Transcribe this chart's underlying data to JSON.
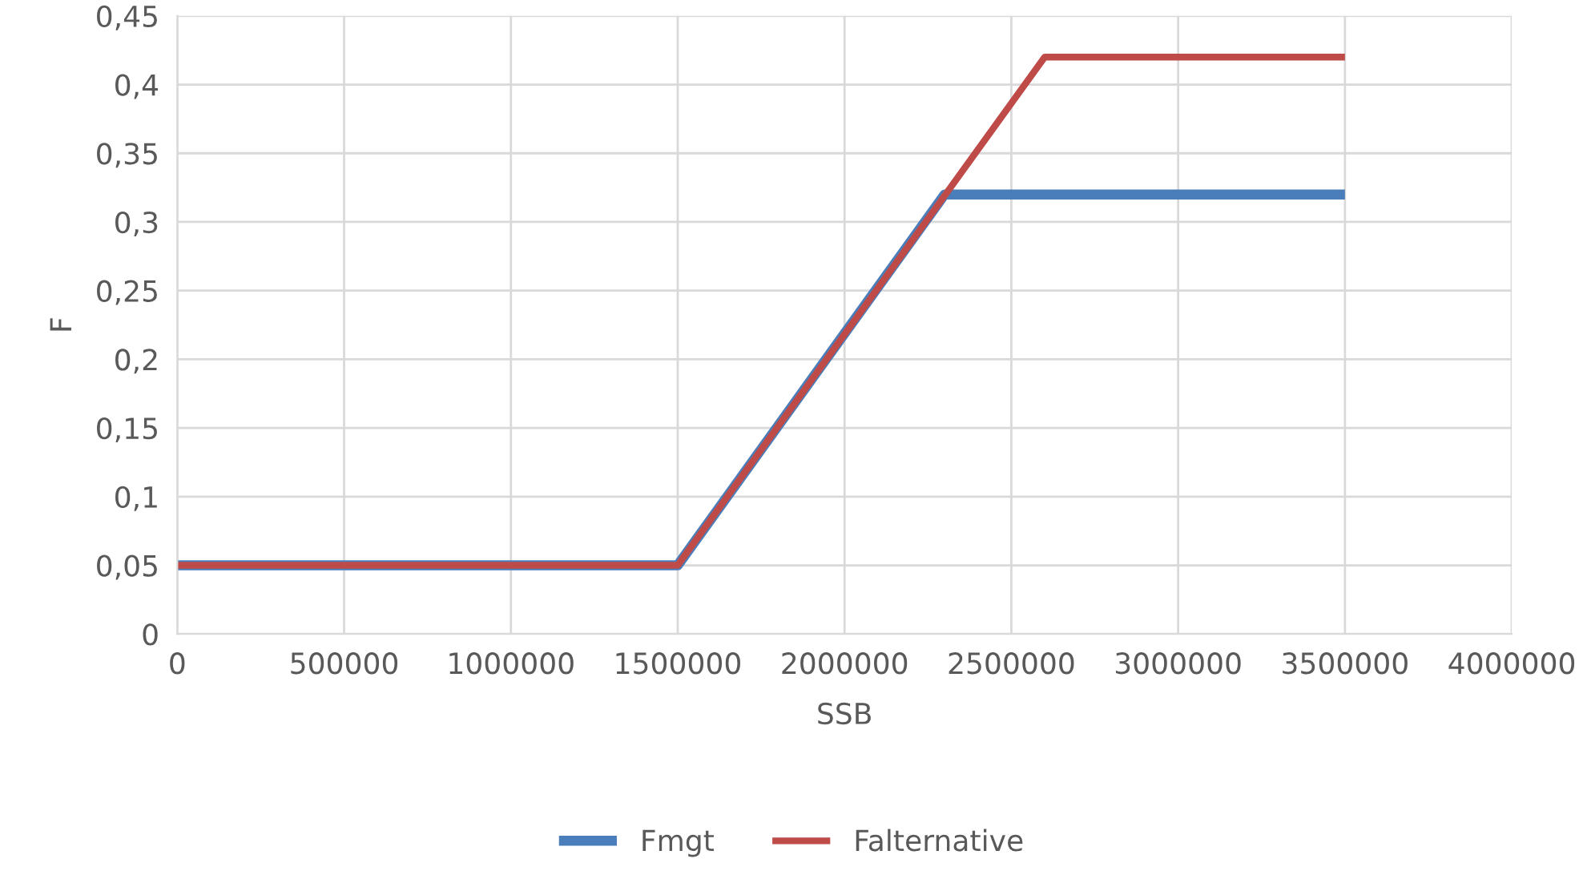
{
  "chart_data": {
    "type": "line",
    "xlabel": "SSB",
    "ylabel": "F",
    "series": [
      {
        "name": "Fmgt",
        "color": "#4a7ebb",
        "x": [
          0,
          1500000,
          2300000,
          3500000
        ],
        "values": [
          0.05,
          0.05,
          0.32,
          0.32
        ]
      },
      {
        "name": "Falternative",
        "color": "#be4b48",
        "x": [
          0,
          1500000,
          2600000,
          3500000
        ],
        "values": [
          0.05,
          0.05,
          0.42,
          0.42
        ]
      }
    ],
    "xlim": [
      0,
      4000000
    ],
    "xticks": [
      0,
      500000,
      1000000,
      1500000,
      2000000,
      2500000,
      3000000,
      3500000,
      4000000
    ],
    "ylim": [
      0,
      0.45
    ],
    "yticks": [
      0,
      {
        "value": 0.05,
        "label": "0,05"
      },
      {
        "value": 0.1,
        "label": "0,1"
      },
      {
        "value": 0.15,
        "label": "0,15"
      },
      {
        "value": 0.2,
        "label": "0,2"
      },
      {
        "value": 0.25,
        "label": "0,25"
      },
      {
        "value": 0.3,
        "label": "0,3"
      },
      {
        "value": 0.35,
        "label": "0,35"
      },
      {
        "value": 0.4,
        "label": "0,4"
      },
      {
        "value": 0.45,
        "label": "0,45"
      }
    ],
    "grid": true,
    "legend": "bottom",
    "marker": "none",
    "line_style": "solid"
  }
}
